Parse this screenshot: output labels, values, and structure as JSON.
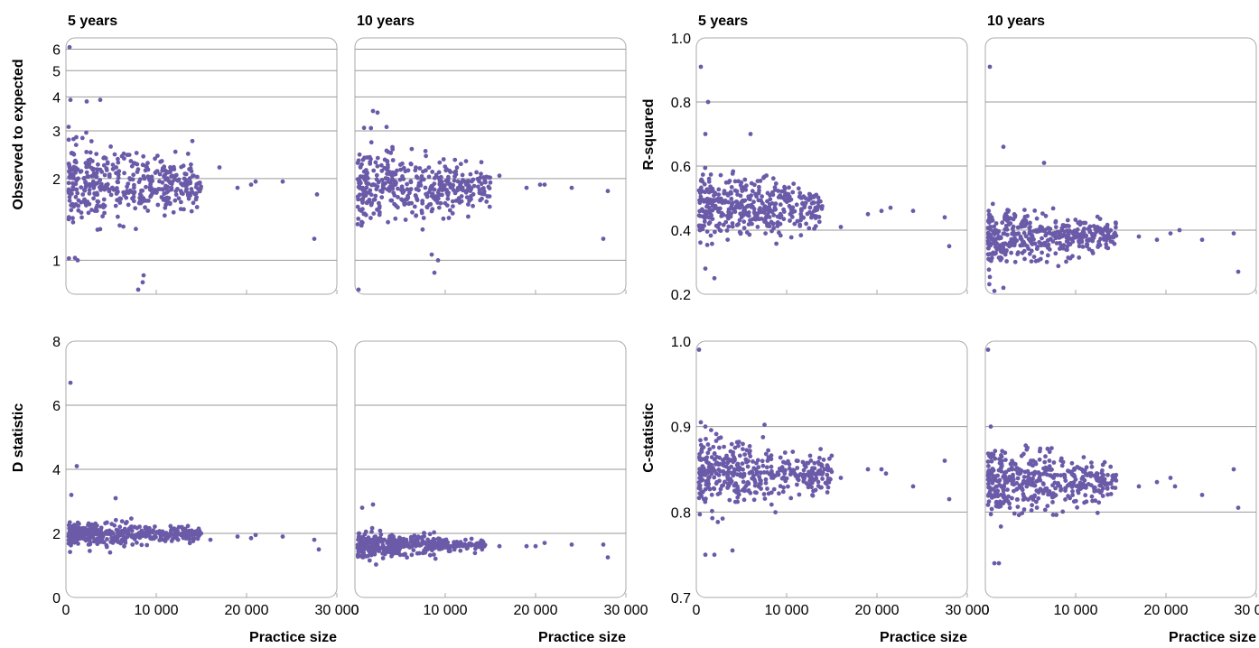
{
  "colors": {
    "point": "#6b5aa8",
    "grid": "#9a9a9a",
    "frame": "#a8a8a8"
  },
  "chart_data": [
    {
      "type": "scatter",
      "metric": "Observed to expected",
      "ylabel": "Observed to expected",
      "xlabel": "",
      "scale_y": "log",
      "xlim": [
        0,
        30000
      ],
      "ylim": [
        0.75,
        6.6
      ],
      "yticks": [
        1,
        2,
        3,
        4,
        5,
        6
      ],
      "yticklabels": [
        "1",
        "2",
        "3",
        "4",
        "5",
        "6"
      ],
      "xticks": [
        0,
        10000,
        20000,
        30000
      ],
      "xticklabels": [],
      "panels": [
        {
          "title": "5 years",
          "series": [
            {
              "points_notable": [
                [
                  400,
                  6.1
                ],
                [
                  500,
                  3.9
                ],
                [
                  2300,
                  3.85
                ],
                [
                  3800,
                  3.9
                ],
                [
                  14000,
                  2.75
                ],
                [
                  17000,
                  2.2
                ],
                [
                  19000,
                  1.85
                ],
                [
                  20500,
                  1.9
                ],
                [
                  21000,
                  1.95
                ],
                [
                  24000,
                  1.95
                ],
                [
                  27800,
                  1.75
                ],
                [
                  27500,
                  1.2
                ],
                [
                  8600,
                  0.88
                ],
                [
                  8500,
                  0.83
                ],
                [
                  8000,
                  0.78
                ],
                [
                  1000,
                  1.02
                ],
                [
                  1300,
                  1.0
                ]
              ],
              "cluster": {
                "x_range": [
                  300,
                  15000
                ],
                "y_center": 1.9,
                "spread": 0.18,
                "count": 420
              }
            }
          ]
        },
        {
          "title": "10 years",
          "series": [
            {
              "points_notable": [
                [
                  400,
                  0.78
                ],
                [
                  2000,
                  3.55
                ],
                [
                  2500,
                  3.5
                ],
                [
                  3500,
                  3.1
                ],
                [
                  14000,
                  2.3
                ],
                [
                  16000,
                  2.05
                ],
                [
                  19000,
                  1.85
                ],
                [
                  20500,
                  1.9
                ],
                [
                  21000,
                  1.9
                ],
                [
                  24000,
                  1.85
                ],
                [
                  28000,
                  1.8
                ],
                [
                  27500,
                  1.2
                ],
                [
                  8800,
                  0.9
                ],
                [
                  8500,
                  1.05
                ],
                [
                  9200,
                  1.0
                ]
              ],
              "cluster": {
                "x_range": [
                  300,
                  15000
                ],
                "y_center": 1.85,
                "spread": 0.17,
                "count": 420
              }
            }
          ]
        }
      ]
    },
    {
      "type": "scatter",
      "metric": "R-squared",
      "ylabel": "R-squared",
      "xlabel": "",
      "scale_y": "linear",
      "xlim": [
        0,
        30000
      ],
      "ylim": [
        0.2,
        1.0
      ],
      "yticks": [
        0.2,
        0.4,
        0.6,
        0.8,
        1.0
      ],
      "yticklabels": [
        "0.2",
        "0.4",
        "0.6",
        "0.8",
        "1.0"
      ],
      "xticks": [
        0,
        10000,
        20000,
        30000
      ],
      "xticklabels": [],
      "panels": [
        {
          "title": "5 years",
          "series": [
            {
              "points_notable": [
                [
                  500,
                  0.91
                ],
                [
                  1300,
                  0.8
                ],
                [
                  1000,
                  0.7
                ],
                [
                  6000,
                  0.7
                ],
                [
                  2000,
                  0.25
                ],
                [
                  16000,
                  0.41
                ],
                [
                  19000,
                  0.45
                ],
                [
                  20500,
                  0.46
                ],
                [
                  21500,
                  0.47
                ],
                [
                  24000,
                  0.46
                ],
                [
                  27500,
                  0.44
                ],
                [
                  28000,
                  0.35
                ],
                [
                  1000,
                  0.28
                ]
              ],
              "cluster": {
                "x_range": [
                  300,
                  14000
                ],
                "y_center": 0.47,
                "spread": 0.06,
                "count": 420
              }
            }
          ]
        },
        {
          "title": "10 years",
          "series": [
            {
              "points_notable": [
                [
                  500,
                  0.91
                ],
                [
                  2000,
                  0.66
                ],
                [
                  6500,
                  0.61
                ],
                [
                  2000,
                  0.22
                ],
                [
                  1000,
                  0.21
                ],
                [
                  17000,
                  0.38
                ],
                [
                  19000,
                  0.37
                ],
                [
                  20500,
                  0.39
                ],
                [
                  21500,
                  0.4
                ],
                [
                  24000,
                  0.37
                ],
                [
                  27500,
                  0.39
                ],
                [
                  28000,
                  0.27
                ]
              ],
              "cluster": {
                "x_range": [
                  300,
                  14500
                ],
                "y_center": 0.38,
                "spread": 0.045,
                "count": 420
              }
            }
          ]
        }
      ]
    },
    {
      "type": "scatter",
      "metric": "D statistic",
      "ylabel": "D statistic",
      "xlabel": "Practice size",
      "scale_y": "linear",
      "xlim": [
        0,
        30000
      ],
      "ylim": [
        0,
        8
      ],
      "yticks": [
        0,
        2,
        4,
        6,
        8
      ],
      "yticklabels": [
        "0",
        "2",
        "4",
        "6",
        "8"
      ],
      "xticks": [
        0,
        10000,
        20000,
        30000
      ],
      "xticklabels": [
        "0",
        "10 000",
        "20 000",
        "30 000"
      ],
      "panels": [
        {
          "title": "",
          "series": [
            {
              "points_notable": [
                [
                  500,
                  6.7
                ],
                [
                  1200,
                  4.1
                ],
                [
                  600,
                  3.2
                ],
                [
                  5500,
                  3.1
                ],
                [
                  16000,
                  1.8
                ],
                [
                  19000,
                  1.9
                ],
                [
                  20500,
                  1.85
                ],
                [
                  21000,
                  1.95
                ],
                [
                  24000,
                  1.9
                ],
                [
                  27500,
                  1.8
                ],
                [
                  28000,
                  1.5
                ]
              ],
              "cluster": {
                "x_range": [
                  300,
                  15000
                ],
                "y_center": 1.95,
                "spread": 0.22,
                "count": 420
              }
            }
          ]
        },
        {
          "title": "",
          "series": [
            {
              "points_notable": [
                [
                  800,
                  2.8
                ],
                [
                  2000,
                  2.9
                ],
                [
                  14000,
                  1.7
                ],
                [
                  16000,
                  1.6
                ],
                [
                  19000,
                  1.6
                ],
                [
                  20000,
                  1.6
                ],
                [
                  21000,
                  1.7
                ],
                [
                  24000,
                  1.65
                ],
                [
                  27500,
                  1.65
                ],
                [
                  28000,
                  1.25
                ]
              ],
              "cluster": {
                "x_range": [
                  300,
                  14500
                ],
                "y_center": 1.65,
                "spread": 0.2,
                "count": 420
              }
            }
          ]
        }
      ]
    },
    {
      "type": "scatter",
      "metric": "C-statistic",
      "ylabel": "C-statistic",
      "xlabel": "Practice size",
      "scale_y": "linear",
      "xlim": [
        0,
        30000
      ],
      "ylim": [
        0.7,
        1.0
      ],
      "yticks": [
        0.7,
        0.8,
        0.9,
        1.0
      ],
      "yticklabels": [
        "0.7",
        "0.8",
        "0.9",
        "1.0"
      ],
      "xticks": [
        0,
        10000,
        20000,
        30000
      ],
      "xticklabels": [
        "0",
        "10 000",
        "20 000",
        "30 000"
      ],
      "panels": [
        {
          "title": "",
          "series": [
            {
              "points_notable": [
                [
                  300,
                  0.99
                ],
                [
                  500,
                  0.905
                ],
                [
                  1000,
                  0.9
                ],
                [
                  2000,
                  0.75
                ],
                [
                  1000,
                  0.75
                ],
                [
                  4000,
                  0.755
                ],
                [
                  16000,
                  0.84
                ],
                [
                  19000,
                  0.85
                ],
                [
                  20500,
                  0.85
                ],
                [
                  21000,
                  0.845
                ],
                [
                  24000,
                  0.83
                ],
                [
                  27500,
                  0.86
                ],
                [
                  28000,
                  0.815
                ]
              ],
              "cluster": {
                "x_range": [
                  300,
                  15000
                ],
                "y_center": 0.845,
                "spread": 0.022,
                "count": 420
              }
            }
          ]
        },
        {
          "title": "",
          "series": [
            {
              "points_notable": [
                [
                  300,
                  0.99
                ],
                [
                  600,
                  0.9
                ],
                [
                  1500,
                  0.74
                ],
                [
                  1000,
                  0.74
                ],
                [
                  17000,
                  0.83
                ],
                [
                  19000,
                  0.835
                ],
                [
                  20500,
                  0.84
                ],
                [
                  21000,
                  0.83
                ],
                [
                  24000,
                  0.82
                ],
                [
                  27500,
                  0.85
                ],
                [
                  28000,
                  0.805
                ]
              ],
              "cluster": {
                "x_range": [
                  300,
                  14500
                ],
                "y_center": 0.835,
                "spread": 0.022,
                "count": 420
              }
            }
          ]
        }
      ]
    }
  ]
}
